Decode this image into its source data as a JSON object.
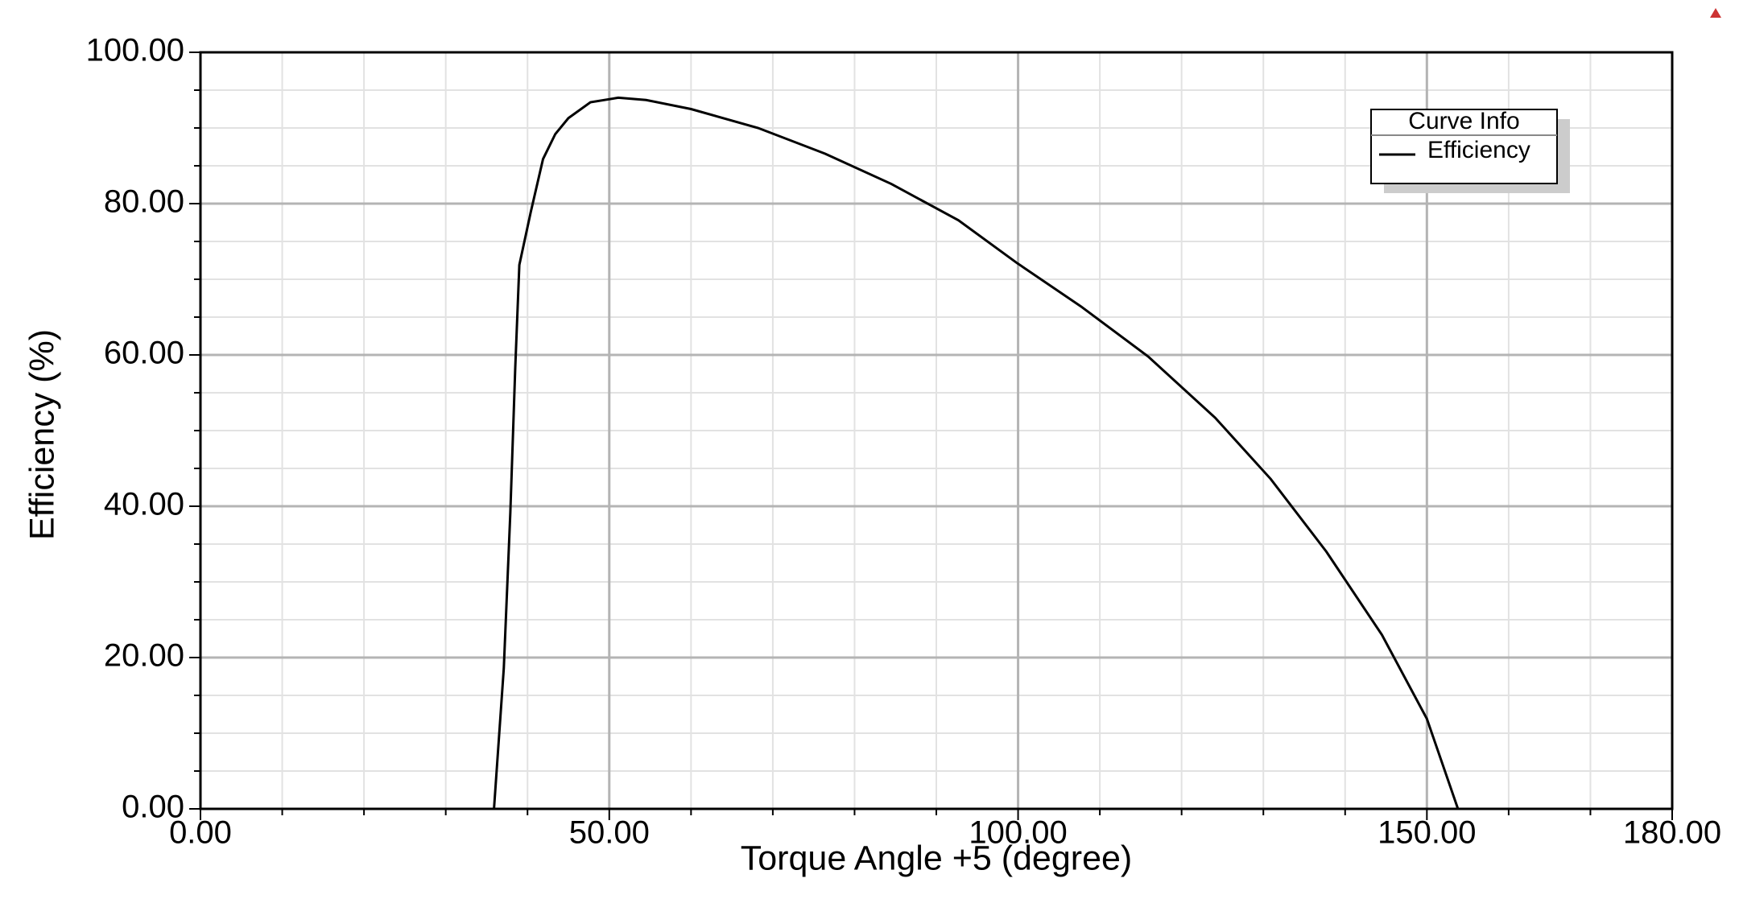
{
  "chart_data": {
    "type": "line",
    "x_label": "Torque Angle +5 (degree)",
    "y_label": "Efficiency (%)",
    "legend_title": "Curve Info",
    "legend_position": "upper right",
    "grid": true,
    "xlim": [
      0,
      180
    ],
    "ylim": [
      0,
      100
    ],
    "xticks": [
      {
        "value": 0,
        "label": "0.00"
      },
      {
        "value": 50,
        "label": "50.00"
      },
      {
        "value": 100,
        "label": "100.00"
      },
      {
        "value": 150,
        "label": "150.00"
      },
      {
        "value": 180,
        "label": "180.00"
      }
    ],
    "yticks": [
      {
        "value": 0,
        "label": "0.00"
      },
      {
        "value": 20,
        "label": "20.00"
      },
      {
        "value": 40,
        "label": "40.00"
      },
      {
        "value": 60,
        "label": "60.00"
      },
      {
        "value": 80,
        "label": "80.00"
      },
      {
        "value": 100,
        "label": "100.00"
      }
    ],
    "xminorticks": [
      10,
      20,
      30,
      40,
      60,
      70,
      80,
      90,
      110,
      120,
      130,
      140,
      160,
      170
    ],
    "yminorticks": [
      5,
      10,
      15,
      25,
      30,
      35,
      45,
      50,
      55,
      65,
      70,
      75,
      85,
      90,
      95
    ],
    "x": [
      35.9,
      37.1,
      37.9,
      38.5,
      39.0,
      40.4,
      41.9,
      43.4,
      45.0,
      47.7,
      51.1,
      54.5,
      60.0,
      68.2,
      76.4,
      84.5,
      92.7,
      99.8,
      107.7,
      115.9,
      124.1,
      130.9,
      137.7,
      144.5,
      150.0,
      153.8
    ],
    "series": [
      {
        "name": "Efficiency",
        "color": "#000000",
        "values": [
          0,
          18.6,
          39.2,
          58.3,
          71.9,
          78.9,
          85.9,
          89.2,
          91.3,
          93.4,
          94.0,
          93.7,
          92.5,
          90.0,
          86.6,
          82.6,
          77.8,
          72.2,
          66.4,
          59.8,
          51.7,
          43.6,
          34.0,
          23.0,
          11.9,
          0
        ]
      }
    ]
  }
}
